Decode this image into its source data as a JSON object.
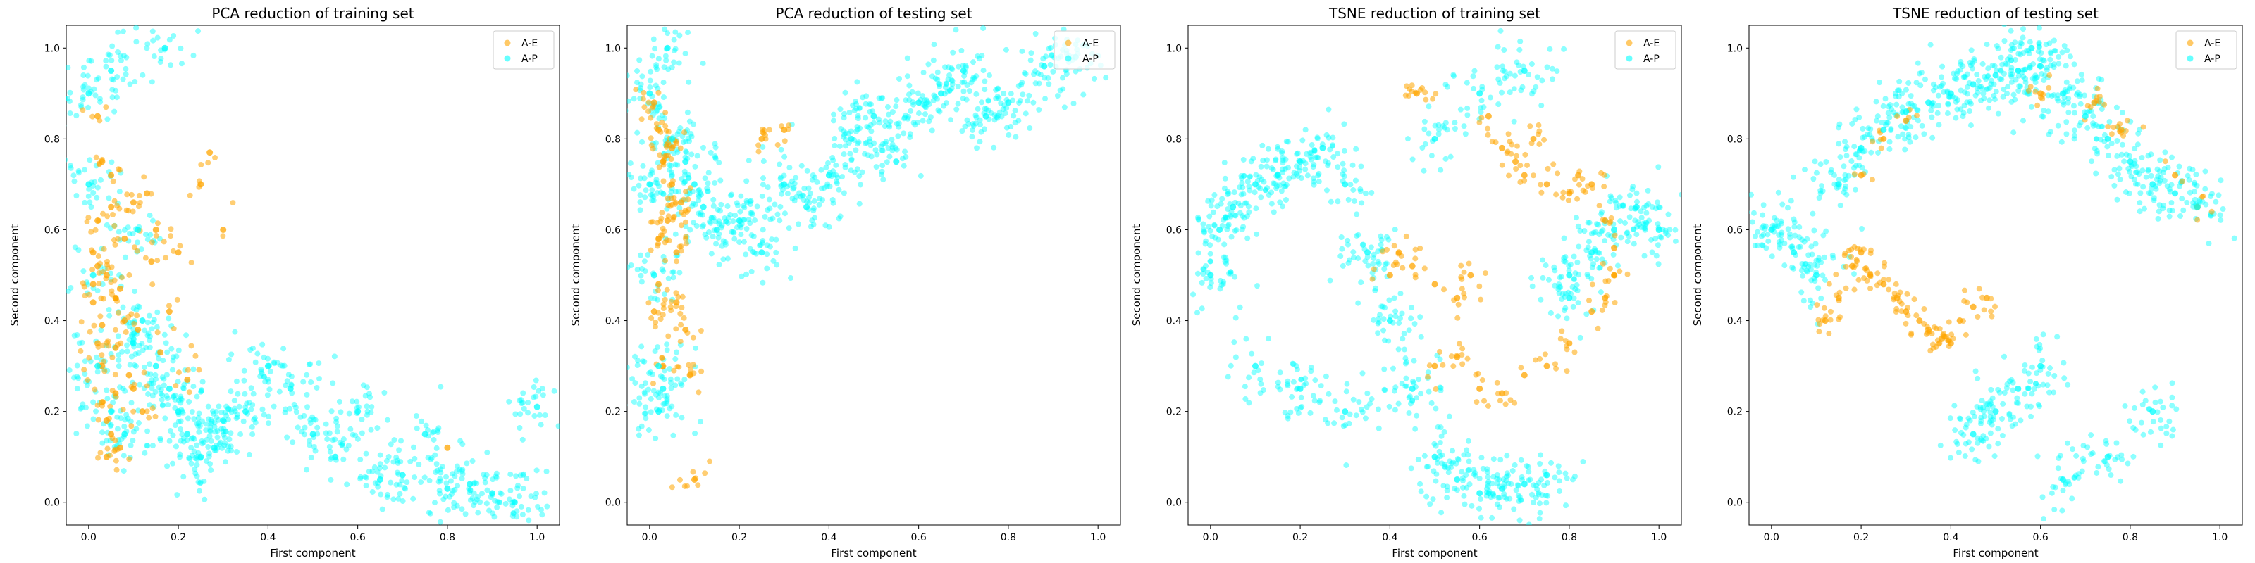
{
  "figure": {
    "colors": {
      "A-E": "#ffa500",
      "A-P": "#00ffff"
    }
  },
  "chart_data": [
    {
      "type": "scatter",
      "title": "PCA reduction of training set",
      "xlabel": "First component",
      "ylabel": "Second component",
      "xlim": [
        -0.05,
        1.05
      ],
      "ylim": [
        -0.05,
        1.05
      ],
      "xticks": [
        "0.0",
        "0.2",
        "0.4",
        "0.6",
        "0.8",
        "1.0"
      ],
      "yticks": [
        "0.0",
        "0.2",
        "0.4",
        "0.6",
        "0.8",
        "1.0"
      ],
      "legend": {
        "placement": "top-right",
        "entries": [
          "A-E",
          "A-P"
        ]
      },
      "series": [
        {
          "name": "A-E",
          "color": "#ffa500",
          "x": [
            0.02,
            0.03,
            0.05,
            0.01,
            0.04,
            0.06,
            0.08,
            0.02,
            0.03,
            0.1,
            0.12,
            0.05,
            0.07,
            0.04,
            0.15,
            0.2,
            0.25,
            0.27,
            0.3,
            0.02,
            0.01,
            0.08,
            0.13,
            0.18,
            0.8,
            0.06,
            0.09,
            0.04,
            0.11,
            0.03,
            0.02,
            0.05,
            0.07,
            0.16,
            0.22,
            0.14,
            0.01,
            0.03,
            0.06,
            0.1
          ],
          "y": [
            0.85,
            0.75,
            0.65,
            0.55,
            0.5,
            0.45,
            0.4,
            0.35,
            0.3,
            0.25,
            0.2,
            0.15,
            0.12,
            0.1,
            0.6,
            0.55,
            0.7,
            0.77,
            0.6,
            0.62,
            0.48,
            0.58,
            0.68,
            0.42,
            0.12,
            0.34,
            0.28,
            0.18,
            0.38,
            0.22,
            0.52,
            0.72,
            0.47,
            0.33,
            0.27,
            0.53,
            0.44,
            0.39,
            0.24,
            0.66
          ]
        },
        {
          "name": "A-P",
          "color": "#00ffff",
          "x": [
            0.0,
            0.0,
            0.01,
            0.02,
            0.05,
            0.08,
            0.1,
            0.12,
            0.15,
            0.18,
            0.2,
            0.22,
            0.25,
            0.28,
            0.3,
            0.35,
            0.4,
            0.45,
            0.5,
            0.55,
            0.6,
            0.65,
            0.7,
            0.75,
            0.8,
            0.85,
            0.9,
            0.95,
            1.0,
            0.17,
            0.05,
            0.11
          ],
          "y": [
            0.9,
            0.7,
            0.5,
            0.3,
            0.2,
            0.15,
            0.35,
            0.4,
            0.3,
            0.25,
            0.2,
            0.15,
            0.1,
            0.12,
            0.18,
            0.2,
            0.3,
            0.25,
            0.15,
            0.1,
            0.2,
            0.05,
            0.06,
            0.15,
            0.03,
            0.04,
            0.02,
            0.0,
            0.21,
            1.0,
            0.95,
            0.6
          ]
        }
      ]
    },
    {
      "type": "scatter",
      "title": "PCA reduction of testing set",
      "xlabel": "First component",
      "ylabel": "Second component",
      "xlim": [
        -0.05,
        1.05
      ],
      "ylim": [
        -0.05,
        1.05
      ],
      "xticks": [
        "0.0",
        "0.2",
        "0.4",
        "0.6",
        "0.8",
        "1.0"
      ],
      "yticks": [
        "0.0",
        "0.2",
        "0.4",
        "0.6",
        "0.8",
        "1.0"
      ],
      "legend": {
        "placement": "top-right",
        "entries": [
          "A-E",
          "A-P"
        ]
      },
      "series": [
        {
          "name": "A-E",
          "color": "#ffa500",
          "x": [
            0.01,
            0.02,
            0.03,
            0.05,
            0.04,
            0.06,
            0.02,
            0.01,
            0.08,
            0.1,
            0.03,
            0.05,
            0.07,
            0.02,
            0.09,
            0.25,
            0.3,
            0.06
          ],
          "y": [
            0.88,
            0.82,
            0.75,
            0.7,
            0.62,
            0.55,
            0.48,
            0.42,
            0.38,
            0.05,
            0.3,
            0.78,
            0.66,
            0.58,
            0.28,
            0.8,
            0.82,
            0.44
          ]
        },
        {
          "name": "A-P",
          "color": "#00ffff",
          "x": [
            0.0,
            0.0,
            0.01,
            0.02,
            0.03,
            0.05,
            0.08,
            0.1,
            0.12,
            0.15,
            0.2,
            0.25,
            0.3,
            0.35,
            0.4,
            0.45,
            0.5,
            0.55,
            0.6,
            0.65,
            0.7,
            0.75,
            0.8,
            0.88,
            0.95,
            0.02,
            0.04
          ],
          "y": [
            0.9,
            0.7,
            0.5,
            0.3,
            0.25,
            0.8,
            0.75,
            0.7,
            0.65,
            0.6,
            0.62,
            0.55,
            0.7,
            0.65,
            0.72,
            0.8,
            0.85,
            0.75,
            0.88,
            0.9,
            0.95,
            0.85,
            0.88,
            0.96,
            0.98,
            0.2,
            1.0
          ]
        }
      ]
    },
    {
      "type": "scatter",
      "title": "TSNE reduction of training set",
      "xlabel": "First component",
      "ylabel": "Second component",
      "xlim": [
        -0.05,
        1.05
      ],
      "ylim": [
        -0.05,
        1.05
      ],
      "xticks": [
        "0.0",
        "0.2",
        "0.4",
        "0.6",
        "0.8",
        "1.0"
      ],
      "yticks": [
        "0.0",
        "0.2",
        "0.4",
        "0.6",
        "0.8",
        "1.0"
      ],
      "legend": {
        "placement": "top-right",
        "entries": [
          "A-E",
          "A-P"
        ]
      },
      "series": [
        {
          "name": "A-E",
          "color": "#ffa500",
          "x": [
            0.4,
            0.45,
            0.5,
            0.55,
            0.58,
            0.62,
            0.65,
            0.68,
            0.7,
            0.72,
            0.75,
            0.8,
            0.82,
            0.85,
            0.88,
            0.9,
            0.9,
            0.88,
            0.85,
            0.8,
            0.75,
            0.7,
            0.65,
            0.6,
            0.55,
            0.5,
            0.42,
            0.46
          ],
          "y": [
            0.5,
            0.52,
            0.48,
            0.45,
            0.5,
            0.85,
            0.78,
            0.75,
            0.72,
            0.8,
            0.7,
            0.68,
            0.72,
            0.7,
            0.62,
            0.56,
            0.5,
            0.45,
            0.42,
            0.35,
            0.3,
            0.28,
            0.24,
            0.25,
            0.32,
            0.3,
            0.55,
            0.9
          ]
        },
        {
          "name": "A-P",
          "color": "#00ffff",
          "x": [
            0.0,
            0.02,
            0.05,
            0.1,
            0.15,
            0.2,
            0.25,
            0.3,
            0.35,
            0.4,
            0.45,
            0.5,
            0.55,
            0.6,
            0.65,
            0.7,
            0.75,
            0.8,
            0.85,
            0.9,
            0.95,
            1.0,
            0.1,
            0.2,
            0.3,
            0.5,
            0.6,
            0.7,
            0.8
          ],
          "y": [
            0.5,
            0.6,
            0.65,
            0.7,
            0.72,
            0.75,
            0.78,
            0.7,
            0.55,
            0.4,
            0.25,
            0.1,
            0.05,
            0.02,
            0.03,
            0.04,
            0.06,
            0.5,
            0.55,
            0.6,
            0.65,
            0.6,
            0.3,
            0.25,
            0.2,
            0.8,
            0.9,
            0.95,
            0.45
          ]
        }
      ]
    },
    {
      "type": "scatter",
      "title": "TSNE reduction of testing set",
      "xlabel": "First component",
      "ylabel": "Second component",
      "xlim": [
        -0.05,
        1.05
      ],
      "ylim": [
        -0.05,
        1.05
      ],
      "xticks": [
        "0.0",
        "0.2",
        "0.4",
        "0.6",
        "0.8",
        "1.0"
      ],
      "yticks": [
        "0.0",
        "0.2",
        "0.4",
        "0.6",
        "0.8",
        "1.0"
      ],
      "legend": {
        "placement": "top-right",
        "entries": [
          "A-E",
          "A-P"
        ]
      },
      "series": [
        {
          "name": "A-E",
          "color": "#ffa500",
          "x": [
            0.12,
            0.15,
            0.18,
            0.2,
            0.22,
            0.25,
            0.28,
            0.3,
            0.33,
            0.35,
            0.38,
            0.4,
            0.42,
            0.45,
            0.48,
            0.2,
            0.25,
            0.3,
            0.6,
            0.72,
            0.78,
            0.9,
            0.95
          ],
          "y": [
            0.4,
            0.45,
            0.52,
            0.55,
            0.5,
            0.48,
            0.45,
            0.42,
            0.4,
            0.38,
            0.36,
            0.35,
            0.4,
            0.43,
            0.45,
            0.72,
            0.8,
            0.84,
            0.9,
            0.88,
            0.82,
            0.72,
            0.65
          ]
        },
        {
          "name": "A-P",
          "color": "#00ffff",
          "x": [
            0.0,
            0.05,
            0.1,
            0.15,
            0.2,
            0.25,
            0.3,
            0.35,
            0.4,
            0.45,
            0.5,
            0.55,
            0.6,
            0.65,
            0.7,
            0.75,
            0.8,
            0.85,
            0.9,
            0.95,
            0.6,
            0.55,
            0.5,
            0.45,
            0.65,
            0.75,
            0.85,
            0.58
          ],
          "y": [
            0.6,
            0.55,
            0.5,
            0.7,
            0.78,
            0.82,
            0.86,
            0.88,
            0.9,
            0.92,
            0.94,
            0.95,
            0.96,
            0.9,
            0.85,
            0.8,
            0.75,
            0.7,
            0.68,
            0.65,
            0.3,
            0.25,
            0.2,
            0.15,
            0.05,
            0.1,
            0.2,
            1.0
          ]
        }
      ]
    }
  ]
}
